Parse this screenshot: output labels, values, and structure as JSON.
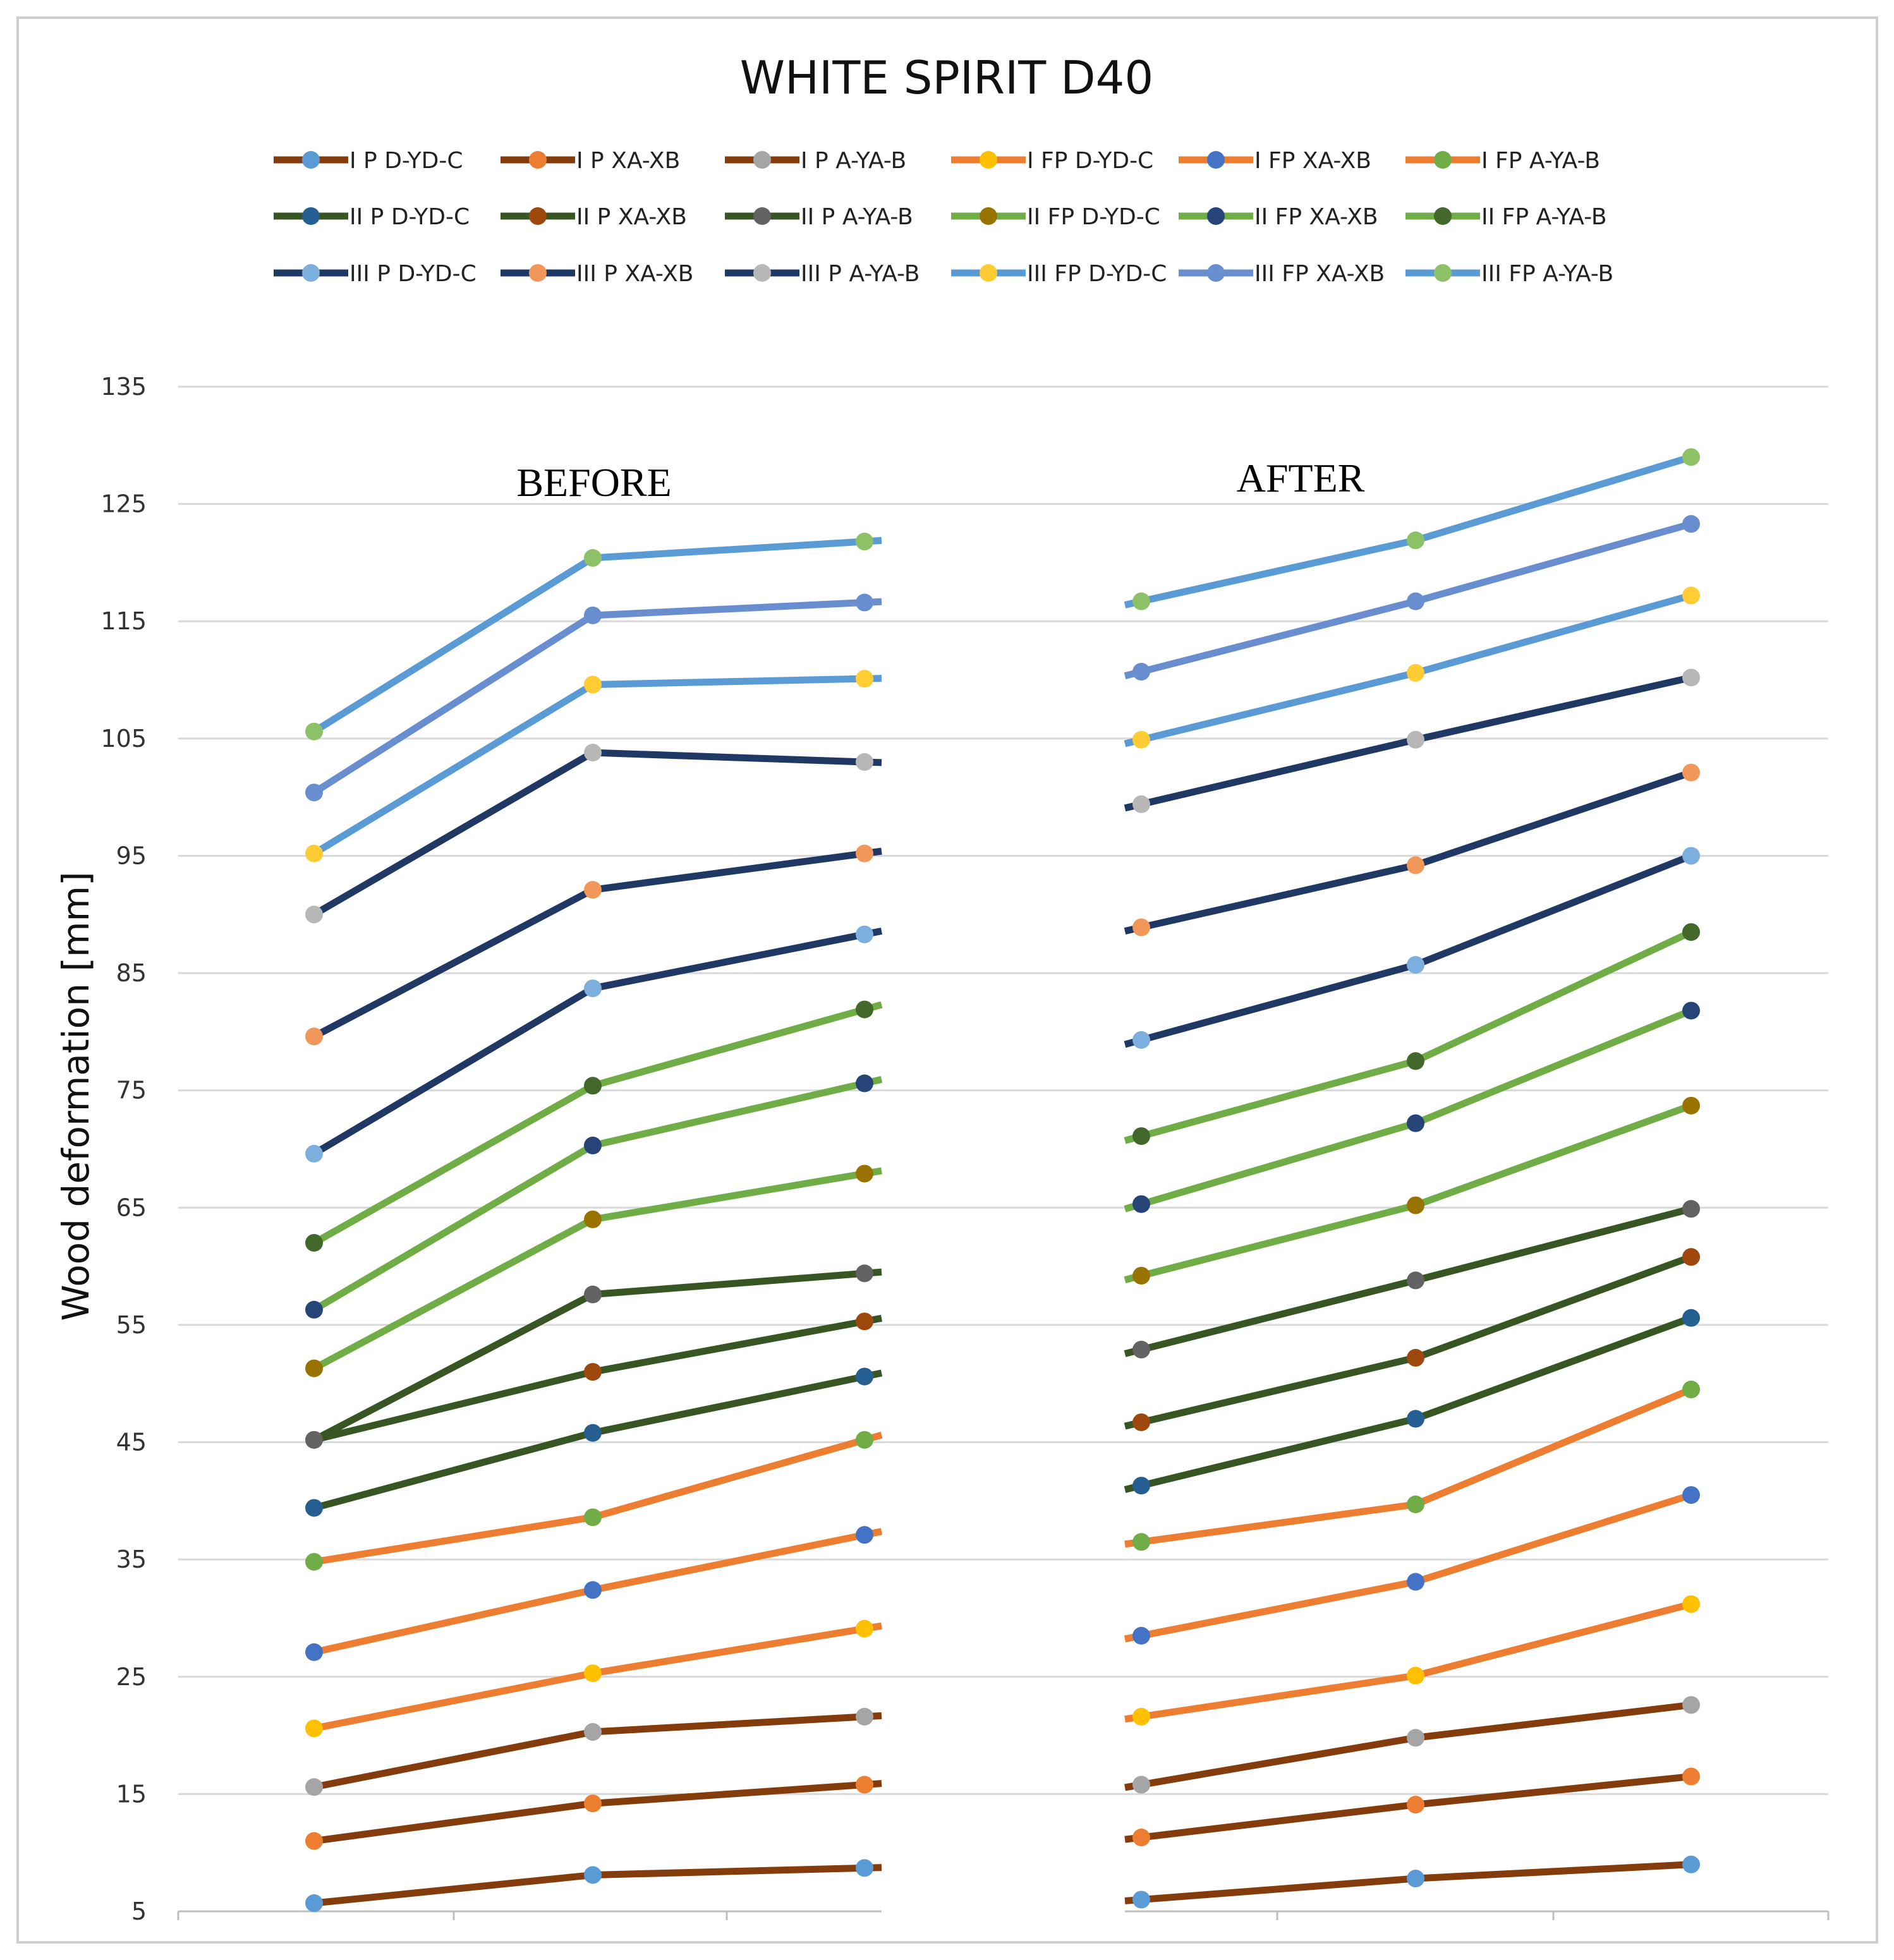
{
  "chart_data": {
    "type": "line",
    "title": "WHITE SPIRIT D40",
    "ylabel": "Wood deformation [mm]",
    "xlabel": "",
    "ylim": [
      5,
      135
    ],
    "yticks": [
      5,
      15,
      25,
      35,
      45,
      55,
      65,
      75,
      85,
      95,
      105,
      115,
      125,
      135
    ],
    "grid": true,
    "legend_position": "top",
    "section_labels": [
      "BEFORE",
      "AFTER"
    ],
    "groups": [
      {
        "label": "BEFORE",
        "points": 3
      },
      {
        "label": "AFTER",
        "points": 3
      }
    ],
    "series": [
      {
        "name": "I P D-YD-C",
        "line_color": "#843C0C",
        "marker_color": "#5B9BD5",
        "before": [
          5.7,
          8.1,
          8.7
        ],
        "after": [
          6.0,
          7.8,
          9.0
        ]
      },
      {
        "name": "I P XA-XB",
        "line_color": "#843C0C",
        "marker_color": "#ED7D31",
        "before": [
          11.0,
          14.2,
          15.8
        ],
        "after": [
          11.3,
          14.1,
          16.5
        ]
      },
      {
        "name": "I P A-YA-B",
        "line_color": "#843C0C",
        "marker_color": "#A5A5A5",
        "before": [
          15.6,
          20.3,
          21.6
        ],
        "after": [
          15.8,
          19.8,
          22.6
        ]
      },
      {
        "name": "I FP D-YD-C",
        "line_color": "#ED7D31",
        "marker_color": "#FFC000",
        "before": [
          20.6,
          25.3,
          29.1
        ],
        "after": [
          21.6,
          25.1,
          31.2
        ]
      },
      {
        "name": "I FP XA-XB",
        "line_color": "#ED7D31",
        "marker_color": "#4472C4",
        "before": [
          27.1,
          32.4,
          37.1
        ],
        "after": [
          28.5,
          33.1,
          40.5
        ]
      },
      {
        "name": "I FP A-YA-B",
        "line_color": "#ED7D31",
        "marker_color": "#70AD47",
        "before": [
          34.8,
          38.6,
          45.2
        ],
        "after": [
          36.5,
          39.7,
          49.5
        ]
      },
      {
        "name": "II P D-YD-C",
        "line_color": "#375623",
        "marker_color": "#255E91",
        "before": [
          39.4,
          45.8,
          50.6
        ],
        "after": [
          41.3,
          47.0,
          55.6
        ]
      },
      {
        "name": "II P XA-XB",
        "line_color": "#375623",
        "marker_color": "#9E480E",
        "before": [
          45.2,
          51.0,
          55.3
        ],
        "after": [
          46.7,
          52.2,
          60.8
        ]
      },
      {
        "name": "II P A-YA-B",
        "line_color": "#375623",
        "marker_color": "#636363",
        "before": [
          45.2,
          57.6,
          59.4
        ],
        "after": [
          52.9,
          58.8,
          64.9
        ]
      },
      {
        "name": "II FP D-YD-C",
        "line_color": "#70AD47",
        "marker_color": "#997300",
        "before": [
          51.3,
          64.0,
          67.9
        ],
        "after": [
          59.2,
          65.2,
          73.7
        ]
      },
      {
        "name": "II FP XA-XB",
        "line_color": "#70AD47",
        "marker_color": "#264478",
        "before": [
          56.3,
          70.3,
          75.6
        ],
        "after": [
          65.3,
          72.2,
          81.8
        ]
      },
      {
        "name": "II FP A-YA-B",
        "line_color": "#70AD47",
        "marker_color": "#43682B",
        "before": [
          62.0,
          75.4,
          81.9
        ],
        "after": [
          71.1,
          77.5,
          88.5
        ]
      },
      {
        "name": "III P D-YD-C",
        "line_color": "#203864",
        "marker_color": "#7CAFDD",
        "before": [
          69.6,
          83.7,
          88.3
        ],
        "after": [
          79.3,
          85.7,
          95.0
        ]
      },
      {
        "name": "III P XA-XB",
        "line_color": "#203864",
        "marker_color": "#F1975A",
        "before": [
          79.6,
          92.1,
          95.2
        ],
        "after": [
          88.9,
          94.2,
          102.1
        ]
      },
      {
        "name": "III P A-YA-B",
        "line_color": "#203864",
        "marker_color": "#B7B7B7",
        "before": [
          90.0,
          103.8,
          103.0
        ],
        "after": [
          99.4,
          104.9,
          110.2
        ]
      },
      {
        "name": "III FP D-YD-C",
        "line_color": "#5B9BD5",
        "marker_color": "#FFCD33",
        "before": [
          95.2,
          109.6,
          110.1
        ],
        "after": [
          104.9,
          110.6,
          117.2
        ]
      },
      {
        "name": "III FP XA-XB",
        "line_color": "#698ED0",
        "marker_color": "#698ED0",
        "before": [
          100.4,
          115.5,
          116.6
        ],
        "after": [
          110.7,
          116.7,
          123.3
        ]
      },
      {
        "name": "III FP A-YA-B",
        "line_color": "#5B9BD5",
        "marker_color": "#8CC168",
        "before": [
          105.6,
          120.4,
          121.8
        ],
        "after": [
          116.7,
          121.9,
          129.0
        ]
      }
    ]
  }
}
